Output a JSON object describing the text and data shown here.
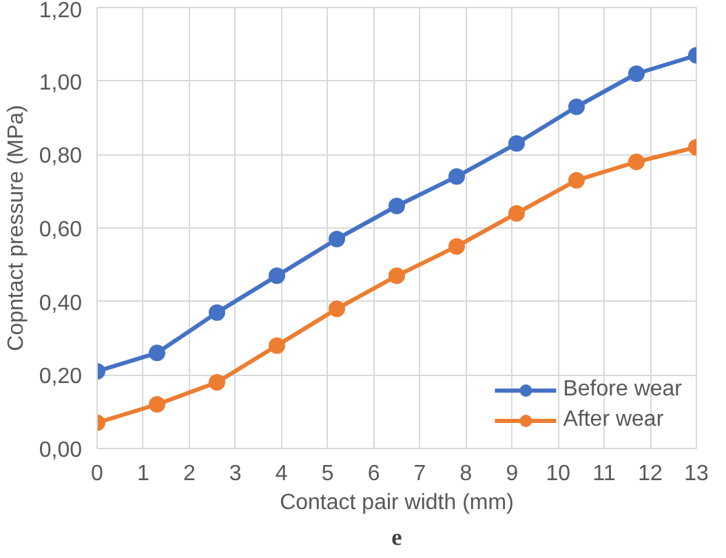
{
  "chart_data": {
    "type": "line",
    "xlabel": "Contact pair width (mm)",
    "ylabel": "Copntact pressure (MPa)",
    "x": [
      0,
      1.3,
      2.6,
      3.9,
      5.2,
      6.5,
      7.8,
      9.1,
      10.4,
      11.7,
      13
    ],
    "series": [
      {
        "name": "Before wear",
        "color": "#4472c4",
        "values": [
          0.21,
          0.26,
          0.37,
          0.47,
          0.57,
          0.66,
          0.74,
          0.83,
          0.93,
          1.02,
          1.07
        ]
      },
      {
        "name": "After wear",
        "color": "#ed7d31",
        "values": [
          0.07,
          0.12,
          0.18,
          0.28,
          0.38,
          0.47,
          0.55,
          0.64,
          0.73,
          0.78,
          0.82
        ]
      }
    ],
    "xlim": [
      0,
      13
    ],
    "xticks": [
      0,
      1,
      2,
      3,
      4,
      5,
      6,
      7,
      8,
      9,
      10,
      11,
      12,
      13
    ],
    "ylim": [
      0,
      1.2
    ],
    "yticks": [
      {
        "value": 0,
        "label": "0,00"
      },
      {
        "value": 0.2,
        "label": "0,20"
      },
      {
        "value": 0.4,
        "label": "0,40"
      },
      {
        "value": 0.6,
        "label": "0,60"
      },
      {
        "value": 0.8,
        "label": "0,80"
      },
      {
        "value": 1.0,
        "label": "1,00"
      },
      {
        "value": 1.2,
        "label": "1,20"
      }
    ],
    "grid": true,
    "legend": "bottom right",
    "marker": "circle",
    "line_style": "solid",
    "annotations": [
      "e"
    ]
  }
}
